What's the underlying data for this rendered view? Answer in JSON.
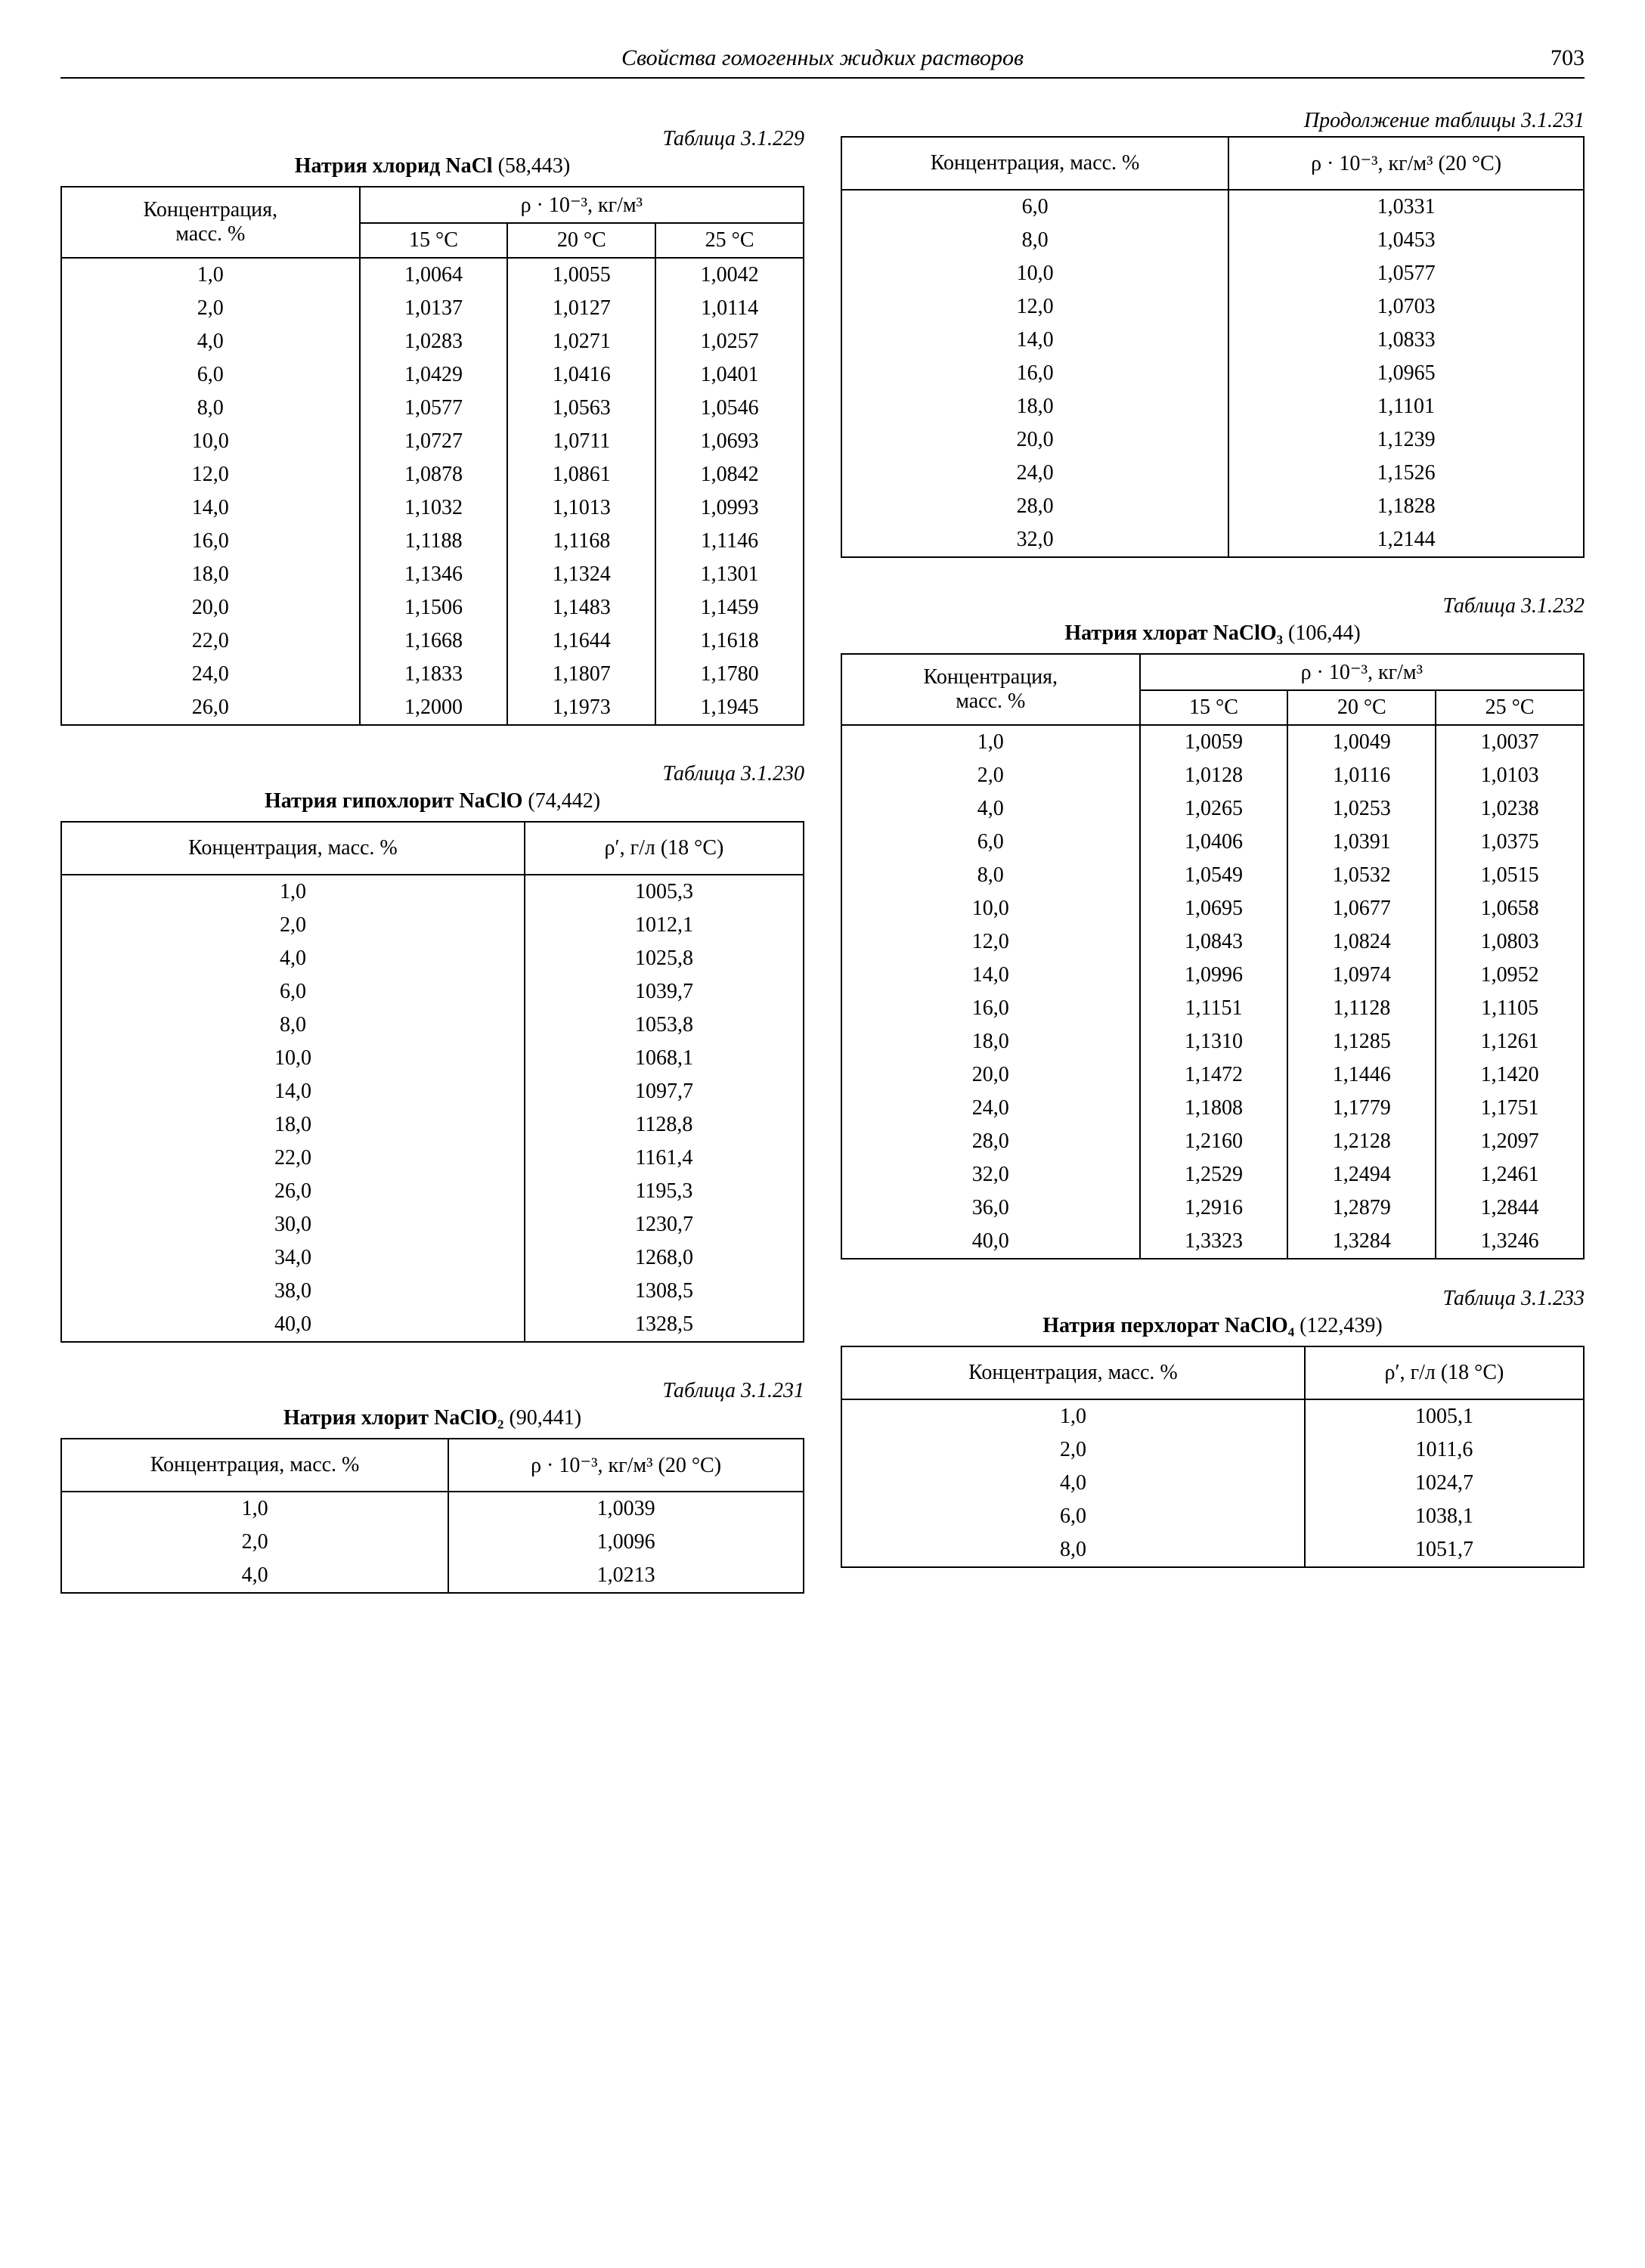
{
  "header": {
    "title": "Свойства гомогенных жидких растворов",
    "page": "703"
  },
  "t229": {
    "label": "Таблица 3.1.229",
    "title_bold": "Натрия хлорид NaCl",
    "title_rest": " (58,443)",
    "col_conc_1": "Концентрация,",
    "col_conc_2": "масс. %",
    "col_dens": "ρ · 10⁻³, кг/м³",
    "temps": [
      "15 °C",
      "20 °C",
      "25 °C"
    ],
    "rows": [
      [
        "1,0",
        "1,0064",
        "1,0055",
        "1,0042"
      ],
      [
        "2,0",
        "1,0137",
        "1,0127",
        "1,0114"
      ],
      [
        "4,0",
        "1,0283",
        "1,0271",
        "1,0257"
      ],
      [
        "6,0",
        "1,0429",
        "1,0416",
        "1,0401"
      ],
      [
        "8,0",
        "1,0577",
        "1,0563",
        "1,0546"
      ],
      [
        "10,0",
        "1,0727",
        "1,0711",
        "1,0693"
      ],
      [
        "12,0",
        "1,0878",
        "1,0861",
        "1,0842"
      ],
      [
        "14,0",
        "1,1032",
        "1,1013",
        "1,0993"
      ],
      [
        "16,0",
        "1,1188",
        "1,1168",
        "1,1146"
      ],
      [
        "18,0",
        "1,1346",
        "1,1324",
        "1,1301"
      ],
      [
        "20,0",
        "1,1506",
        "1,1483",
        "1,1459"
      ],
      [
        "22,0",
        "1,1668",
        "1,1644",
        "1,1618"
      ],
      [
        "24,0",
        "1,1833",
        "1,1807",
        "1,1780"
      ],
      [
        "26,0",
        "1,2000",
        "1,1973",
        "1,1945"
      ]
    ]
  },
  "t230": {
    "label": "Таблица 3.1.230",
    "title_bold": "Натрия гипохлорит NaClO",
    "title_rest": " (74,442)",
    "col_conc": "Концентрация, масс. %",
    "col_dens": "ρ′, г/л (18 °C)",
    "rows": [
      [
        "1,0",
        "1005,3"
      ],
      [
        "2,0",
        "1012,1"
      ],
      [
        "4,0",
        "1025,8"
      ],
      [
        "6,0",
        "1039,7"
      ],
      [
        "8,0",
        "1053,8"
      ],
      [
        "10,0",
        "1068,1"
      ],
      [
        "14,0",
        "1097,7"
      ],
      [
        "18,0",
        "1128,8"
      ],
      [
        "22,0",
        "1161,4"
      ],
      [
        "26,0",
        "1195,3"
      ],
      [
        "30,0",
        "1230,7"
      ],
      [
        "34,0",
        "1268,0"
      ],
      [
        "38,0",
        "1308,5"
      ],
      [
        "40,0",
        "1328,5"
      ]
    ]
  },
  "t231": {
    "label": "Таблица 3.1.231",
    "title_bold": "Натрия хлорит NaClO₂",
    "title_rest": " (90,441)",
    "col_conc": "Концентрация, масс. %",
    "col_dens": "ρ · 10⁻³, кг/м³ (20 °C)",
    "rows": [
      [
        "1,0",
        "1,0039"
      ],
      [
        "2,0",
        "1,0096"
      ],
      [
        "4,0",
        "1,0213"
      ]
    ]
  },
  "t231c": {
    "label": "Продолжение таблицы 3.1.231",
    "col_conc": "Концентрация, масс. %",
    "col_dens": "ρ · 10⁻³, кг/м³ (20 °C)",
    "rows": [
      [
        "6,0",
        "1,0331"
      ],
      [
        "8,0",
        "1,0453"
      ],
      [
        "10,0",
        "1,0577"
      ],
      [
        "12,0",
        "1,0703"
      ],
      [
        "14,0",
        "1,0833"
      ],
      [
        "16,0",
        "1,0965"
      ],
      [
        "18,0",
        "1,1101"
      ],
      [
        "20,0",
        "1,1239"
      ],
      [
        "24,0",
        "1,1526"
      ],
      [
        "28,0",
        "1,1828"
      ],
      [
        "32,0",
        "1,2144"
      ]
    ]
  },
  "t232": {
    "label": "Таблица 3.1.232",
    "title_bold": "Натрия хлорат NaClO₃",
    "title_rest": " (106,44)",
    "col_conc_1": "Концентрация,",
    "col_conc_2": "масс. %",
    "col_dens": "ρ · 10⁻³, кг/м³",
    "temps": [
      "15 °C",
      "20 °C",
      "25 °C"
    ],
    "rows": [
      [
        "1,0",
        "1,0059",
        "1,0049",
        "1,0037"
      ],
      [
        "2,0",
        "1,0128",
        "1,0116",
        "1,0103"
      ],
      [
        "4,0",
        "1,0265",
        "1,0253",
        "1,0238"
      ],
      [
        "6,0",
        "1,0406",
        "1,0391",
        "1,0375"
      ],
      [
        "8,0",
        "1,0549",
        "1,0532",
        "1,0515"
      ],
      [
        "10,0",
        "1,0695",
        "1,0677",
        "1,0658"
      ],
      [
        "12,0",
        "1,0843",
        "1,0824",
        "1,0803"
      ],
      [
        "14,0",
        "1,0996",
        "1,0974",
        "1,0952"
      ],
      [
        "16,0",
        "1,1151",
        "1,1128",
        "1,1105"
      ],
      [
        "18,0",
        "1,1310",
        "1,1285",
        "1,1261"
      ],
      [
        "20,0",
        "1,1472",
        "1,1446",
        "1,1420"
      ],
      [
        "24,0",
        "1,1808",
        "1,1779",
        "1,1751"
      ],
      [
        "28,0",
        "1,2160",
        "1,2128",
        "1,2097"
      ],
      [
        "32,0",
        "1,2529",
        "1,2494",
        "1,2461"
      ],
      [
        "36,0",
        "1,2916",
        "1,2879",
        "1,2844"
      ],
      [
        "40,0",
        "1,3323",
        "1,3284",
        "1,3246"
      ]
    ]
  },
  "t233": {
    "label": "Таблица 3.1.233",
    "title_bold": "Натрия перхлорат NaClO₄",
    "title_rest": " (122,439)",
    "col_conc": "Концентрация, масс. %",
    "col_dens": "ρ′, г/л (18 °C)",
    "rows": [
      [
        "1,0",
        "1005,1"
      ],
      [
        "2,0",
        "1011,6"
      ],
      [
        "4,0",
        "1024,7"
      ],
      [
        "6,0",
        "1038,1"
      ],
      [
        "8,0",
        "1051,7"
      ]
    ]
  }
}
